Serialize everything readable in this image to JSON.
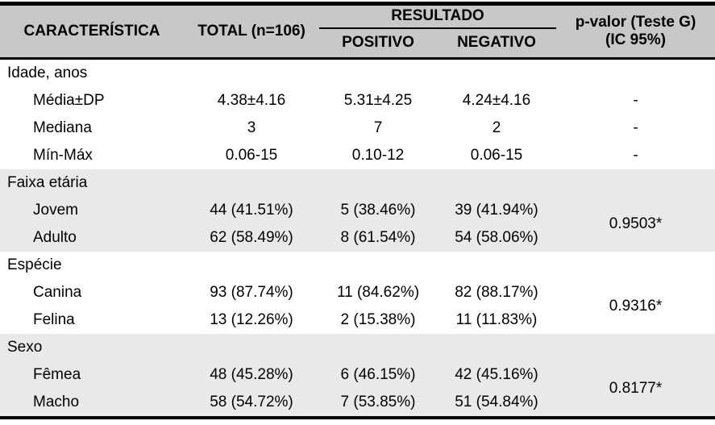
{
  "colors": {
    "page_bg": "#ffffff",
    "header_bg": "#c8c8c8",
    "band_bg": "#e9e9e9",
    "border": "#000000",
    "text": "#000000"
  },
  "table": {
    "header": {
      "caracteristica": "CARACTERÍSTICA",
      "total": "TOTAL (n=106)",
      "resultado": "RESULTADO",
      "positivo": "POSITIVO",
      "negativo": "NEGATIVO",
      "pvalor_line1": "p-valor (Teste G)",
      "pvalor_line2": "(IC 95%)"
    },
    "sections": [
      {
        "title": "Idade, anos",
        "shaded": false,
        "rows": [
          {
            "label": "Média±DP",
            "total": "4.38±4.16",
            "positivo": "5.31±4.25",
            "negativo": "4.24±4.16",
            "p": "-"
          },
          {
            "label": "Mediana",
            "total": "3",
            "positivo": "7",
            "negativo": "2",
            "p": "-"
          },
          {
            "label": "Mín-Máx",
            "total": "0.06-15",
            "positivo": "0.10-12",
            "negativo": "0.06-15",
            "p": "-"
          }
        ]
      },
      {
        "title": "Faixa etária",
        "shaded": true,
        "p": "0.9503*",
        "rows": [
          {
            "label": "Jovem",
            "total": "44 (41.51%)",
            "positivo": "5 (38.46%)",
            "negativo": "39 (41.94%)"
          },
          {
            "label": "Adulto",
            "total": "62 (58.49%)",
            "positivo": "8 (61.54%)",
            "negativo": "54 (58.06%)"
          }
        ]
      },
      {
        "title": "Espécie",
        "shaded": false,
        "p": "0.9316*",
        "rows": [
          {
            "label": "Canina",
            "total": "93 (87.74%)",
            "positivo": "11 (84.62%)",
            "negativo": "82 (88.17%)"
          },
          {
            "label": "Felina",
            "total": "13 (12.26%)",
            "positivo": "2 (15.38%)",
            "negativo": "11 (11.83%)"
          }
        ]
      },
      {
        "title": "Sexo",
        "shaded": true,
        "p": "0.8177*",
        "rows": [
          {
            "label": "Fêmea",
            "total": "48 (45.28%)",
            "positivo": "6 (46.15%)",
            "negativo": "42 (45.16%)"
          },
          {
            "label": "Macho",
            "total": "58 (54.72%)",
            "positivo": "7 (53.85%)",
            "negativo": "51 (54.84%)"
          }
        ]
      }
    ]
  }
}
